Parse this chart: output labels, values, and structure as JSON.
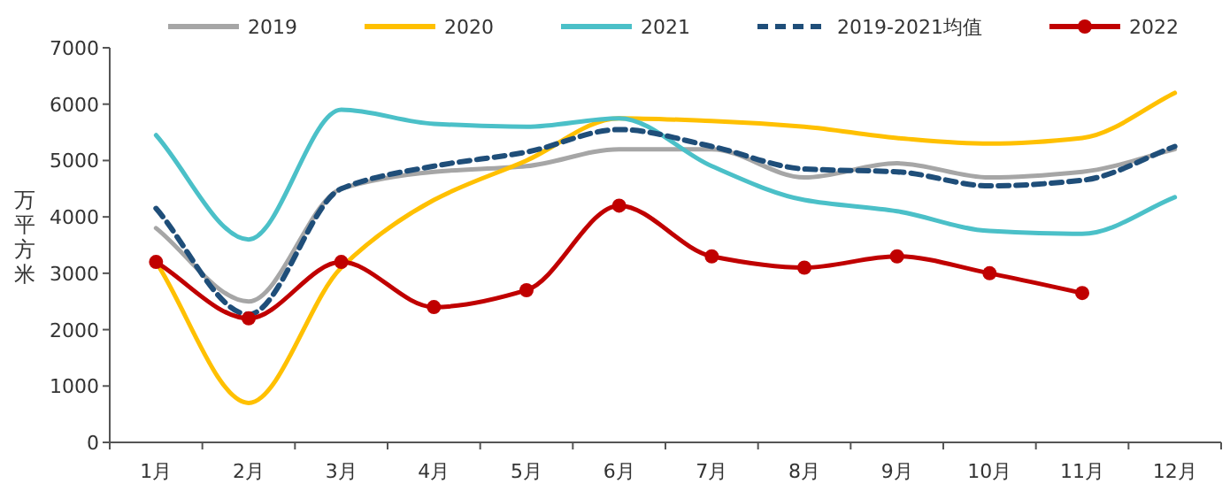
{
  "chart_data": {
    "type": "line",
    "ylabel": "万平方米",
    "categories": [
      "1月",
      "2月",
      "3月",
      "4月",
      "5月",
      "6月",
      "7月",
      "8月",
      "9月",
      "10月",
      "11月",
      "12月"
    ],
    "ylim": [
      0,
      7000
    ],
    "yticks": [
      0,
      1000,
      2000,
      3000,
      4000,
      5000,
      6000,
      7000
    ],
    "legend": "top",
    "series": [
      {
        "name": "2019",
        "color": "#a6a6a6",
        "line_style": "solid",
        "values": [
          3800,
          2500,
          4500,
          4800,
          4900,
          5200,
          5200,
          4700,
          4950,
          4700,
          4800,
          5200
        ]
      },
      {
        "name": "2020",
        "color": "#ffc000",
        "line_style": "solid",
        "values": [
          3200,
          700,
          3100,
          4300,
          5000,
          5750,
          5700,
          5600,
          5400,
          5300,
          5400,
          6200
        ]
      },
      {
        "name": "2021",
        "color": "#4bc0c8",
        "line_style": "solid",
        "values": [
          5450,
          3600,
          5900,
          5650,
          5600,
          5750,
          4900,
          4300,
          4100,
          3750,
          3700,
          4350
        ]
      },
      {
        "name": "2019-2021均值",
        "color": "#1f4e79",
        "line_style": "dashed",
        "values": [
          4150,
          2270,
          4500,
          4900,
          5150,
          5550,
          5250,
          4850,
          4800,
          4550,
          4650,
          5250
        ]
      },
      {
        "name": "2022",
        "color": "#c00000",
        "line_style": "solid",
        "marker": "circle",
        "values": [
          3200,
          2200,
          3200,
          2400,
          2700,
          4200,
          3300,
          3100,
          3300,
          3000,
          2650,
          null
        ]
      }
    ]
  }
}
